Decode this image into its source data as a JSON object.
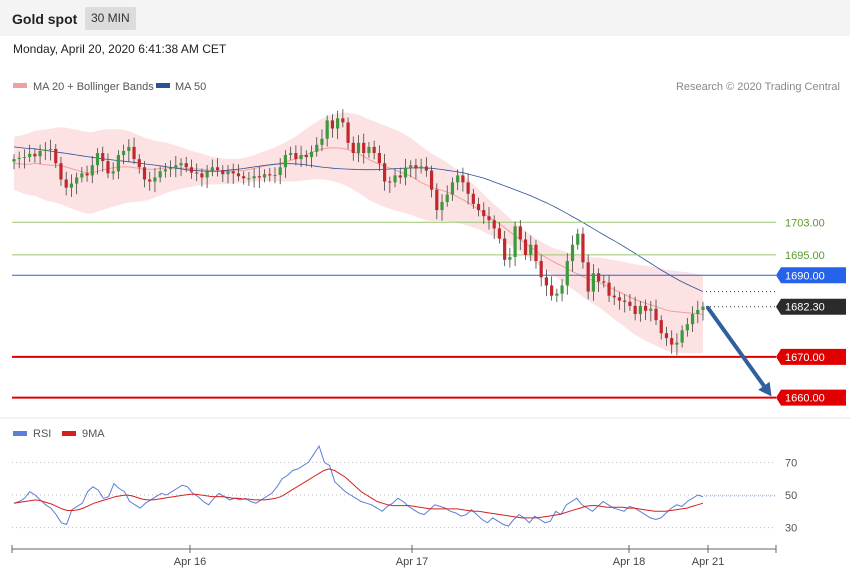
{
  "header": {
    "instrument": "Gold spot",
    "timeframe": "30 MIN",
    "datetime": "Monday, April 20, 2020 6:41:38 AM CET"
  },
  "colors": {
    "ma20_band": "#f0a0a0",
    "ma50": "#2a5298",
    "support": "#e00000",
    "pivot": "#2563eb",
    "resistance": "#9ac870",
    "rsi": "#5b7fd6",
    "rsi_ma": "#d62020",
    "candle_up": "#3c9a3c",
    "candle_down": "#c0282d",
    "arrow": "#2f5f9e"
  },
  "chart_data": [
    {
      "type": "line",
      "subtype": "candlestick",
      "legend": [
        {
          "label": "MA 20 + Bollinger Bands",
          "color": "#f0a0a0"
        },
        {
          "label": "MA 50",
          "color": "#2a5298"
        }
      ],
      "credit": "Research © 2020 Trading Central",
      "x_ticks": [
        "Apr 16",
        "Apr 17",
        "Apr 18",
        "Apr 21"
      ],
      "ylim": [
        1655,
        1733
      ],
      "levels": [
        {
          "label": "1703.00",
          "value": 1703.0,
          "kind": "resistance"
        },
        {
          "label": "1695.00",
          "value": 1695.0,
          "kind": "resistance"
        },
        {
          "label": "1690.00",
          "value": 1690.0,
          "kind": "pivot"
        },
        {
          "label": "1682.30",
          "value": 1682.3,
          "kind": "last"
        },
        {
          "label": "1670.00",
          "value": 1670.0,
          "kind": "support"
        },
        {
          "label": "1660.00",
          "value": 1660.0,
          "kind": "support"
        }
      ],
      "close": [
        1718.5,
        1718.8,
        1719.0,
        1719.8,
        1719.2,
        1720.5,
        1720.8,
        1721.0,
        1717.5,
        1713.5,
        1711.5,
        1712.5,
        1714.0,
        1715.0,
        1714.5,
        1717.0,
        1720.0,
        1718.0,
        1715.0,
        1715.5,
        1719.5,
        1720.5,
        1721.5,
        1718.5,
        1716.5,
        1713.5,
        1713.0,
        1714.0,
        1715.5,
        1716.0,
        1716.3,
        1717.0,
        1717.5,
        1716.5,
        1715.2,
        1715.0,
        1714.0,
        1715.5,
        1716.5,
        1715.8,
        1714.8,
        1715.5,
        1715.0,
        1714.3,
        1713.8,
        1713.8,
        1714.3,
        1714.0,
        1714.8,
        1714.5,
        1714.6,
        1716.5,
        1719.5,
        1720.0,
        1718.5,
        1719.5,
        1719.0,
        1720.3,
        1722.0,
        1723.5,
        1728.0,
        1726.0,
        1728.5,
        1727.5,
        1722.5,
        1720.0,
        1722.5,
        1720.0,
        1721.5,
        1720.0,
        1717.5,
        1713.0,
        1712.8,
        1714.5,
        1714.0,
        1716.3,
        1717.0,
        1716.2,
        1716.7,
        1715.7,
        1711.0,
        1706.0,
        1708.0,
        1709.8,
        1712.8,
        1714.5,
        1712.8,
        1710.0,
        1707.5,
        1706.0,
        1704.5,
        1703.5,
        1701.5,
        1699.0,
        1693.8,
        1694.5,
        1702.0,
        1698.8,
        1695.0,
        1697.5,
        1693.5,
        1689.5,
        1687.5,
        1685.0,
        1685.5,
        1687.5,
        1693.5,
        1697.5,
        1700.2,
        1693.2,
        1686.0,
        1690.5,
        1688.5,
        1688.2,
        1685.0,
        1684.6,
        1683.8,
        1683.5,
        1682.5,
        1680.5,
        1682.5,
        1681.3,
        1681.8,
        1679.0,
        1675.8,
        1674.6,
        1673.0,
        1673.5,
        1676.5,
        1678.0,
        1680.5,
        1681.5,
        1682.3
      ],
      "ma20": [
        1717.5,
        1717.3,
        1717.2,
        1717.5,
        1717.2,
        1717.0,
        1717.0,
        1716.8,
        1716.3,
        1715.8,
        1715.3,
        1715.0,
        1715.5,
        1716.0,
        1716.3,
        1716.5,
        1716.7,
        1716.5,
        1716.2,
        1716.0,
        1716.0,
        1716.2,
        1716.4,
        1716.4,
        1716.3,
        1716.2,
        1716.1,
        1716.0,
        1715.8,
        1715.6,
        1715.5,
        1715.5,
        1715.6,
        1715.7,
        1716.0,
        1716.4,
        1716.8,
        1717.1,
        1717.4,
        1717.8,
        1718.3,
        1718.9,
        1719.6,
        1720.3,
        1720.9,
        1721.2,
        1721.3,
        1721.2,
        1720.8,
        1720.2,
        1719.4,
        1718.4,
        1717.6,
        1716.9,
        1716.3,
        1715.7,
        1715.0,
        1714.3,
        1713.3,
        1712.3,
        1711.6,
        1711.1,
        1710.6,
        1709.9,
        1709.0,
        1708.1,
        1707.0,
        1705.9,
        1704.6,
        1703.4,
        1702.3,
        1701.0,
        1699.7,
        1698.5,
        1697.2,
        1696.0,
        1694.8,
        1693.8,
        1692.9,
        1692.1,
        1691.1,
        1690.3,
        1689.5,
        1688.8,
        1688.3,
        1687.5,
        1686.7,
        1685.9,
        1685.1,
        1684.2,
        1683.6,
        1683.0,
        1682.5,
        1681.9,
        1681.3,
        1681.1,
        1680.9,
        1680.8,
        1680.6,
        1680.4
      ],
      "ma50": [
        1721.5,
        1721.2,
        1721.0,
        1720.6,
        1720.2,
        1719.8,
        1719.4,
        1719.0,
        1718.6,
        1718.3,
        1718.0,
        1717.7,
        1717.3,
        1717.0,
        1716.6,
        1716.2,
        1715.8,
        1715.6,
        1715.5,
        1715.6,
        1715.9,
        1716.2,
        1716.6,
        1717.0,
        1717.3,
        1717.4,
        1717.3,
        1717.0,
        1716.6,
        1716.3,
        1716.1,
        1716.0,
        1715.9,
        1715.9,
        1716.0,
        1716.2,
        1716.3,
        1716.4,
        1716.3,
        1716.0,
        1715.6,
        1715.2,
        1714.5,
        1713.8,
        1712.8,
        1711.8,
        1710.8,
        1709.8,
        1708.6,
        1707.4,
        1706.0,
        1704.5,
        1703.0,
        1701.4,
        1699.8,
        1698.3,
        1696.7,
        1695.0,
        1693.3,
        1691.6,
        1690.0,
        1688.5,
        1687.2,
        1686.0
      ]
    },
    {
      "type": "line",
      "title": "RSI",
      "series": [
        {
          "name": "RSI"
        },
        {
          "name": "9MA"
        }
      ],
      "y_ticks": [
        70,
        50,
        30
      ],
      "ylim": [
        20,
        80
      ],
      "rsi": [
        45,
        46,
        48,
        52,
        50,
        47,
        44,
        42,
        38,
        33,
        32,
        41,
        43,
        45,
        52,
        55,
        53,
        48,
        49,
        57,
        54,
        52,
        46,
        44,
        42,
        45,
        47,
        49,
        51,
        50,
        52,
        54,
        56,
        55,
        51,
        49,
        46,
        44,
        48,
        51,
        49,
        47,
        48,
        47,
        48,
        46,
        45,
        47,
        49,
        51,
        55,
        60,
        62,
        65,
        66,
        68,
        70,
        75,
        80,
        70,
        68,
        58,
        55,
        52,
        50,
        48,
        46,
        45,
        44,
        42,
        40,
        43,
        45,
        48,
        46,
        43,
        41,
        39,
        38,
        41,
        44,
        43,
        42,
        40,
        39,
        37,
        38,
        41,
        38,
        35,
        33,
        36,
        34,
        32,
        31,
        35,
        38,
        36,
        33,
        37,
        35,
        33,
        34,
        40,
        38,
        44,
        46,
        48,
        44,
        42,
        40,
        43,
        46,
        44,
        42,
        41,
        40,
        43,
        42,
        40,
        38,
        36,
        35,
        36,
        39,
        42,
        44,
        43,
        46,
        48,
        50,
        49
      ],
      "rsi_ma": [
        45,
        45.5,
        46,
        46.5,
        47,
        46.5,
        45.5,
        44.5,
        43,
        41.5,
        40.5,
        40.5,
        41,
        42,
        43.5,
        45,
        46,
        47,
        48,
        49,
        49.5,
        50,
        49.5,
        48.5,
        47.5,
        47,
        47,
        47.5,
        48,
        48.5,
        49,
        49.5,
        50,
        50.5,
        50.5,
        50,
        49.5,
        49,
        49,
        49,
        48.5,
        48,
        48,
        47.5,
        47.5,
        47,
        47,
        47,
        47.5,
        48,
        49,
        51,
        53,
        55,
        57,
        59,
        61,
        63,
        65,
        66,
        65,
        63,
        61,
        58,
        55,
        52,
        50,
        48,
        46,
        45,
        44,
        43.5,
        43.5,
        43.5,
        43.5,
        43,
        42.5,
        42,
        41.5,
        41.5,
        41.5,
        41.5,
        41.5,
        41.5,
        41,
        40.5,
        40,
        40,
        39.5,
        39,
        38.5,
        38,
        37.5,
        37,
        36.5,
        36,
        36,
        36,
        36,
        36.5,
        37,
        37.5,
        38,
        39,
        40,
        41,
        42,
        43,
        43.5,
        43.5,
        43,
        42.5,
        42.5,
        42.5,
        42.5,
        42,
        42,
        41.5,
        41,
        40.5,
        40,
        40,
        40,
        40.5,
        41,
        41.5,
        42,
        43,
        44,
        45
      ]
    }
  ]
}
